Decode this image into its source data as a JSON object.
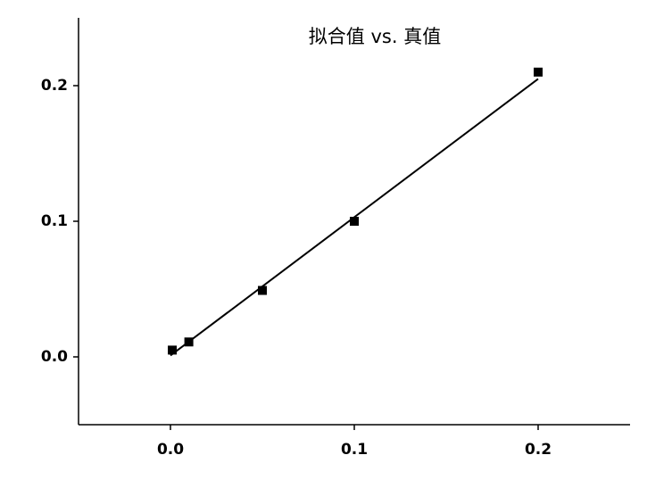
{
  "chart_data": {
    "type": "scatter",
    "title": "拟合值 vs. 真值",
    "series": [
      {
        "style": "markers",
        "color": "#000000",
        "x": [
          0.001,
          0.01,
          0.05,
          0.1,
          0.2
        ],
        "values": [
          0.005,
          0.011,
          0.049,
          0.1,
          0.21
        ]
      },
      {
        "style": "line",
        "color": "#000000",
        "x": [
          0,
          0.2
        ],
        "values": [
          0.001,
          0.205
        ]
      }
    ],
    "xlim": [
      -0.05,
      0.25
    ],
    "ylim": [
      -0.05,
      0.25
    ],
    "xticks": [
      {
        "value": 0,
        "label": "0.0"
      },
      0.1,
      0.2
    ],
    "yticks": [
      {
        "value": 0,
        "label": "0.0"
      },
      0.1,
      0.2
    ],
    "grid": false
  }
}
